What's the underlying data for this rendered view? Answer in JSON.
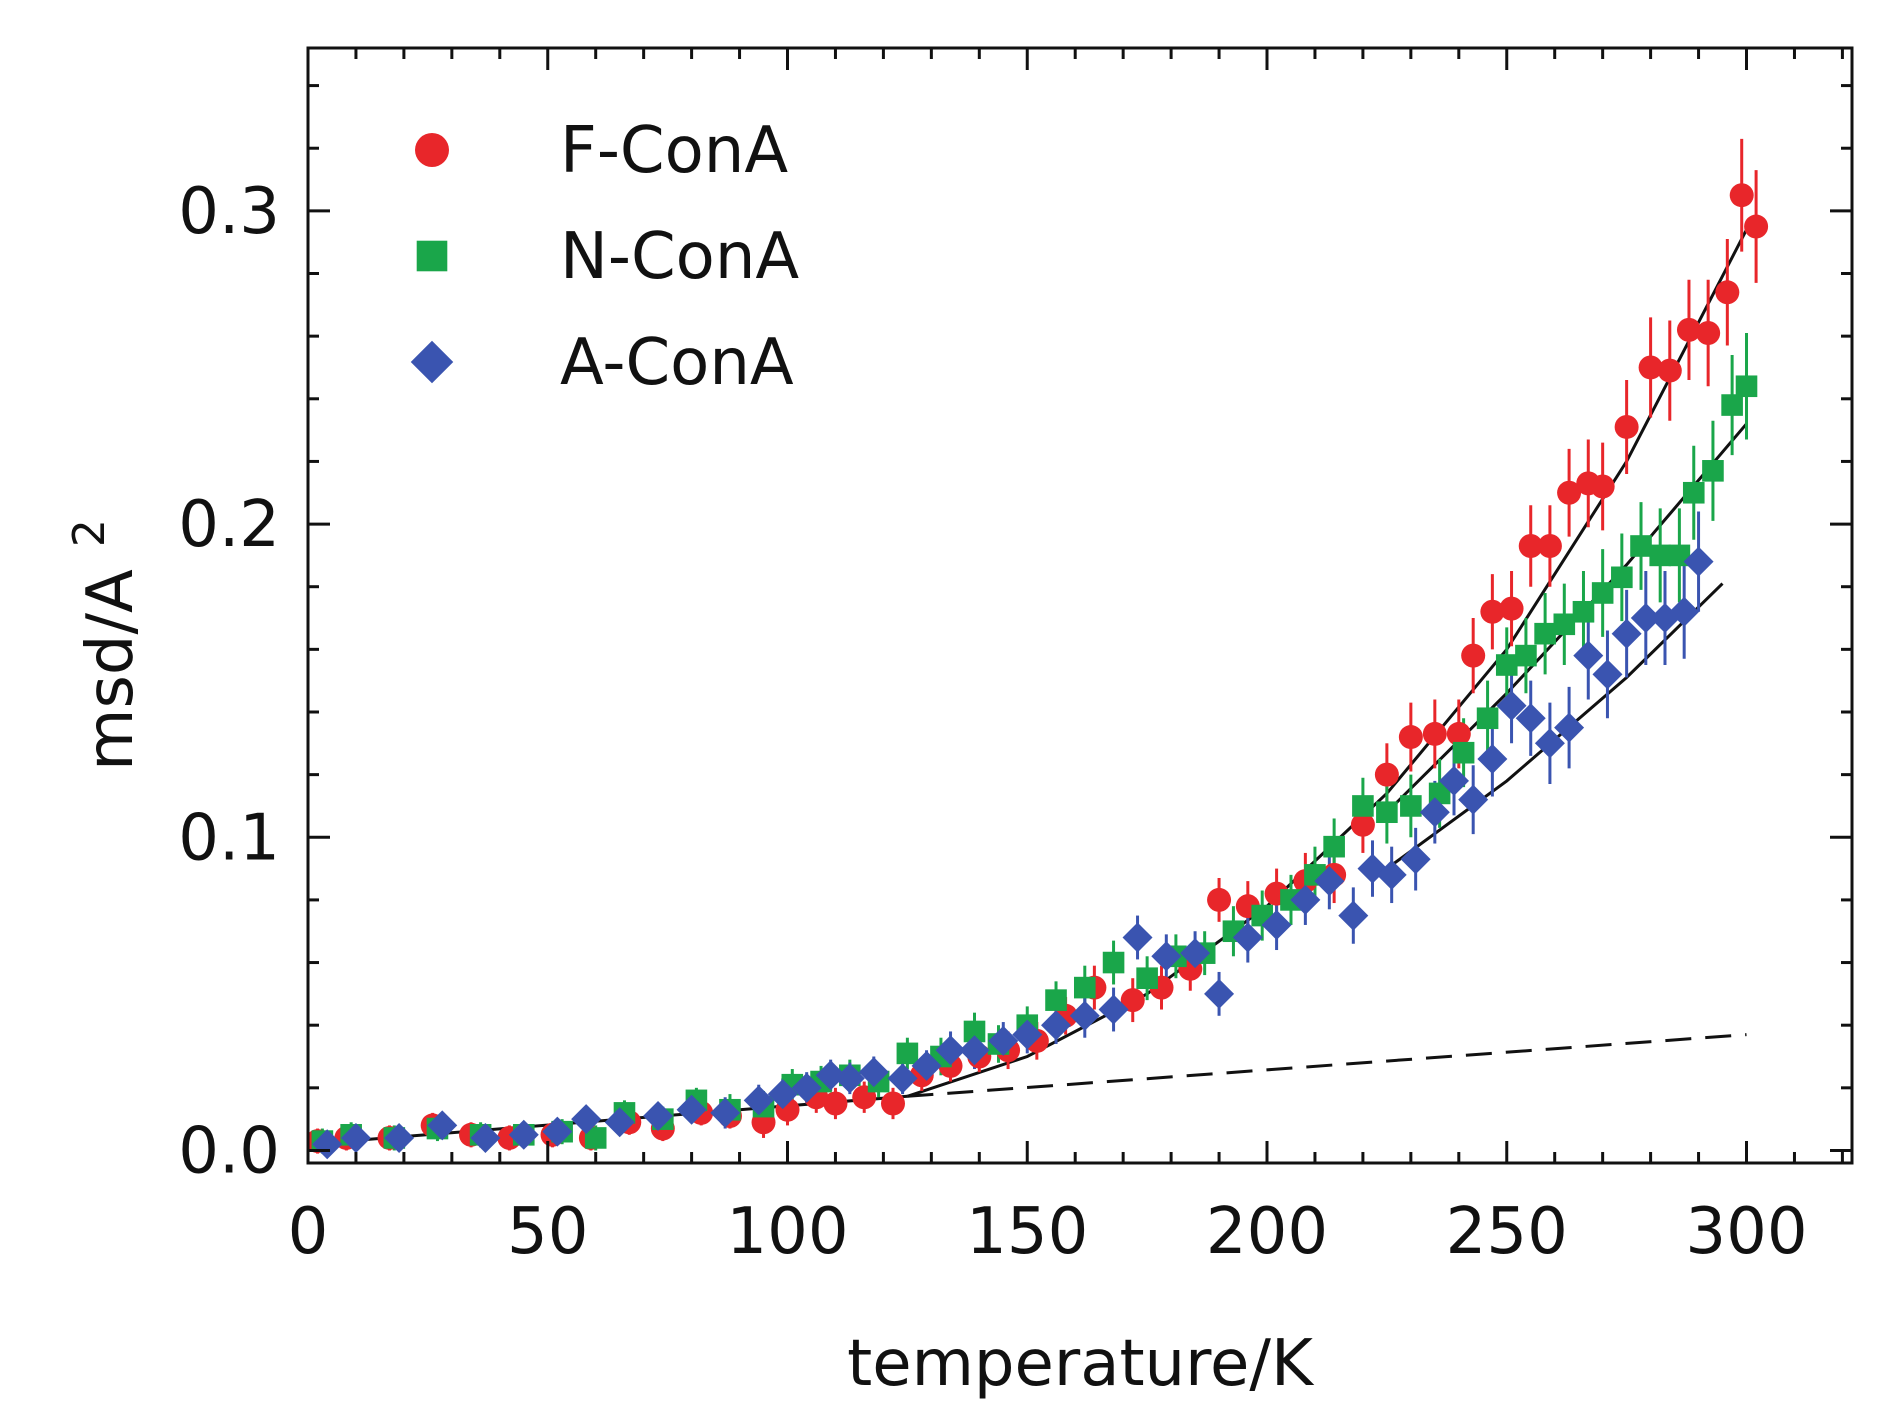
{
  "chart_data": {
    "type": "scatter",
    "title": "",
    "xlabel": "temperature/K",
    "ylabel": "msd/A",
    "ylabel_superscript": "2",
    "xlim": [
      0,
      322
    ],
    "ylim": [
      -0.004,
      0.352
    ],
    "xticks": [
      0,
      50,
      100,
      150,
      200,
      250,
      300
    ],
    "yticks": [
      0.0,
      0.1,
      0.2,
      0.3
    ],
    "ytick_labels": [
      "0.0",
      "0.1",
      "0.2",
      "0.3"
    ],
    "x_minor_step": 10,
    "y_minor_step": 0.02,
    "grid": false,
    "legend_position": "top-left",
    "series": [
      {
        "name": "F-ConA",
        "marker": "circle",
        "color": "#e8262a",
        "points": [
          [
            2,
            0.003,
            0.004
          ],
          [
            8,
            0.004,
            0.004
          ],
          [
            17,
            0.004,
            0.004
          ],
          [
            26,
            0.008,
            0.004
          ],
          [
            34,
            0.005,
            0.004
          ],
          [
            42,
            0.004,
            0.004
          ],
          [
            51,
            0.005,
            0.004
          ],
          [
            59,
            0.004,
            0.004
          ],
          [
            67,
            0.009,
            0.004
          ],
          [
            74,
            0.007,
            0.004
          ],
          [
            82,
            0.012,
            0.004
          ],
          [
            88,
            0.011,
            0.004
          ],
          [
            95,
            0.009,
            0.005
          ],
          [
            100,
            0.013,
            0.005
          ],
          [
            106,
            0.017,
            0.005
          ],
          [
            110,
            0.015,
            0.005
          ],
          [
            116,
            0.017,
            0.005
          ],
          [
            122,
            0.015,
            0.005
          ],
          [
            128,
            0.024,
            0.005
          ],
          [
            134,
            0.027,
            0.005
          ],
          [
            140,
            0.03,
            0.005
          ],
          [
            146,
            0.032,
            0.006
          ],
          [
            152,
            0.035,
            0.006
          ],
          [
            158,
            0.043,
            0.006
          ],
          [
            164,
            0.052,
            0.007
          ],
          [
            172,
            0.048,
            0.007
          ],
          [
            178,
            0.052,
            0.007
          ],
          [
            184,
            0.058,
            0.007
          ],
          [
            190,
            0.08,
            0.007
          ],
          [
            196,
            0.078,
            0.008
          ],
          [
            202,
            0.082,
            0.008
          ],
          [
            208,
            0.086,
            0.009
          ],
          [
            214,
            0.088,
            0.009
          ],
          [
            220,
            0.104,
            0.009
          ],
          [
            225,
            0.12,
            0.01
          ],
          [
            230,
            0.132,
            0.011
          ],
          [
            235,
            0.133,
            0.011
          ],
          [
            240,
            0.133,
            0.011
          ],
          [
            243,
            0.158,
            0.012
          ],
          [
            247,
            0.172,
            0.012
          ],
          [
            251,
            0.173,
            0.012
          ],
          [
            255,
            0.193,
            0.013
          ],
          [
            259,
            0.193,
            0.013
          ],
          [
            263,
            0.21,
            0.014
          ],
          [
            267,
            0.213,
            0.014
          ],
          [
            270,
            0.212,
            0.014
          ],
          [
            275,
            0.231,
            0.015
          ],
          [
            280,
            0.25,
            0.016
          ],
          [
            284,
            0.249,
            0.016
          ],
          [
            288,
            0.262,
            0.016
          ],
          [
            292,
            0.261,
            0.017
          ],
          [
            296,
            0.274,
            0.017
          ],
          [
            299,
            0.305,
            0.018
          ],
          [
            302,
            0.295,
            0.018
          ]
        ]
      },
      {
        "name": "N-ConA",
        "marker": "square",
        "color": "#1aa64a",
        "points": [
          [
            3,
            0.003,
            0.004
          ],
          [
            9,
            0.005,
            0.004
          ],
          [
            18,
            0.004,
            0.004
          ],
          [
            27,
            0.007,
            0.004
          ],
          [
            36,
            0.005,
            0.004
          ],
          [
            45,
            0.005,
            0.004
          ],
          [
            53,
            0.006,
            0.004
          ],
          [
            60,
            0.004,
            0.004
          ],
          [
            66,
            0.012,
            0.004
          ],
          [
            74,
            0.01,
            0.004
          ],
          [
            81,
            0.016,
            0.004
          ],
          [
            88,
            0.013,
            0.005
          ],
          [
            95,
            0.014,
            0.005
          ],
          [
            101,
            0.021,
            0.005
          ],
          [
            107,
            0.022,
            0.005
          ],
          [
            113,
            0.024,
            0.005
          ],
          [
            119,
            0.022,
            0.005
          ],
          [
            125,
            0.031,
            0.005
          ],
          [
            132,
            0.03,
            0.006
          ],
          [
            139,
            0.038,
            0.006
          ],
          [
            144,
            0.034,
            0.006
          ],
          [
            150,
            0.04,
            0.006
          ],
          [
            156,
            0.048,
            0.006
          ],
          [
            162,
            0.052,
            0.007
          ],
          [
            168,
            0.06,
            0.007
          ],
          [
            175,
            0.055,
            0.007
          ],
          [
            181,
            0.062,
            0.007
          ],
          [
            187,
            0.063,
            0.007
          ],
          [
            193,
            0.07,
            0.008
          ],
          [
            199,
            0.075,
            0.008
          ],
          [
            205,
            0.08,
            0.008
          ],
          [
            210,
            0.088,
            0.009
          ],
          [
            214,
            0.097,
            0.009
          ],
          [
            220,
            0.11,
            0.009
          ],
          [
            225,
            0.108,
            0.01
          ],
          [
            230,
            0.11,
            0.01
          ],
          [
            236,
            0.114,
            0.011
          ],
          [
            241,
            0.127,
            0.011
          ],
          [
            246,
            0.138,
            0.012
          ],
          [
            250,
            0.155,
            0.012
          ],
          [
            254,
            0.158,
            0.012
          ],
          [
            258,
            0.165,
            0.013
          ],
          [
            262,
            0.168,
            0.013
          ],
          [
            266,
            0.172,
            0.013
          ],
          [
            270,
            0.178,
            0.014
          ],
          [
            274,
            0.183,
            0.014
          ],
          [
            278,
            0.193,
            0.014
          ],
          [
            282,
            0.19,
            0.015
          ],
          [
            286,
            0.19,
            0.015
          ],
          [
            289,
            0.21,
            0.015
          ],
          [
            293,
            0.217,
            0.016
          ],
          [
            297,
            0.238,
            0.016
          ],
          [
            300,
            0.244,
            0.017
          ]
        ]
      },
      {
        "name": "A-ConA",
        "marker": "diamond",
        "color": "#3a54b0",
        "points": [
          [
            4,
            0.002,
            0.004
          ],
          [
            10,
            0.004,
            0.004
          ],
          [
            19,
            0.004,
            0.004
          ],
          [
            28,
            0.008,
            0.004
          ],
          [
            37,
            0.004,
            0.004
          ],
          [
            45,
            0.005,
            0.004
          ],
          [
            52,
            0.006,
            0.004
          ],
          [
            58,
            0.01,
            0.004
          ],
          [
            65,
            0.009,
            0.004
          ],
          [
            73,
            0.011,
            0.004
          ],
          [
            80,
            0.013,
            0.004
          ],
          [
            87,
            0.012,
            0.005
          ],
          [
            94,
            0.016,
            0.005
          ],
          [
            99,
            0.018,
            0.005
          ],
          [
            104,
            0.02,
            0.005
          ],
          [
            109,
            0.024,
            0.005
          ],
          [
            113,
            0.023,
            0.005
          ],
          [
            118,
            0.025,
            0.005
          ],
          [
            124,
            0.023,
            0.005
          ],
          [
            129,
            0.027,
            0.005
          ],
          [
            134,
            0.032,
            0.006
          ],
          [
            139,
            0.032,
            0.006
          ],
          [
            145,
            0.035,
            0.006
          ],
          [
            150,
            0.037,
            0.006
          ],
          [
            156,
            0.04,
            0.006
          ],
          [
            162,
            0.043,
            0.007
          ],
          [
            168,
            0.045,
            0.007
          ],
          [
            173,
            0.068,
            0.007
          ],
          [
            179,
            0.062,
            0.007
          ],
          [
            185,
            0.063,
            0.007
          ],
          [
            190,
            0.05,
            0.007
          ],
          [
            196,
            0.068,
            0.008
          ],
          [
            202,
            0.072,
            0.008
          ],
          [
            208,
            0.08,
            0.008
          ],
          [
            213,
            0.086,
            0.009
          ],
          [
            218,
            0.075,
            0.009
          ],
          [
            222,
            0.09,
            0.009
          ],
          [
            226,
            0.088,
            0.009
          ],
          [
            231,
            0.093,
            0.01
          ],
          [
            235,
            0.108,
            0.01
          ],
          [
            239,
            0.118,
            0.011
          ],
          [
            243,
            0.112,
            0.011
          ],
          [
            247,
            0.125,
            0.012
          ],
          [
            251,
            0.142,
            0.012
          ],
          [
            255,
            0.138,
            0.012
          ],
          [
            259,
            0.13,
            0.013
          ],
          [
            263,
            0.135,
            0.013
          ],
          [
            267,
            0.158,
            0.014
          ],
          [
            271,
            0.152,
            0.014
          ],
          [
            275,
            0.165,
            0.014
          ],
          [
            279,
            0.17,
            0.015
          ],
          [
            283,
            0.17,
            0.015
          ],
          [
            287,
            0.172,
            0.015
          ],
          [
            290,
            0.188,
            0.016
          ]
        ]
      }
    ],
    "fit_lines": [
      {
        "name": "low-temperature linear fit",
        "style": "solid",
        "x": [
          0,
          125
        ],
        "y": [
          0.002,
          0.0173
        ]
      },
      {
        "name": "harmonic extrapolation",
        "style": "dashed",
        "x": [
          125,
          300
        ],
        "y": [
          0.0173,
          0.037
        ]
      },
      {
        "name": "F-ConA fit",
        "style": "solid",
        "x": [
          125,
          150,
          175,
          200,
          225,
          250,
          275,
          300
        ],
        "y": [
          0.0173,
          0.03,
          0.05,
          0.078,
          0.114,
          0.16,
          0.22,
          0.294
        ]
      },
      {
        "name": "N-ConA fit",
        "style": "solid",
        "x": [
          225,
          250,
          275,
          300
        ],
        "y": [
          0.108,
          0.146,
          0.187,
          0.232
        ]
      },
      {
        "name": "A-ConA fit",
        "style": "solid",
        "x": [
          225,
          250,
          275,
          295
        ],
        "y": [
          0.09,
          0.118,
          0.151,
          0.181
        ]
      }
    ]
  }
}
